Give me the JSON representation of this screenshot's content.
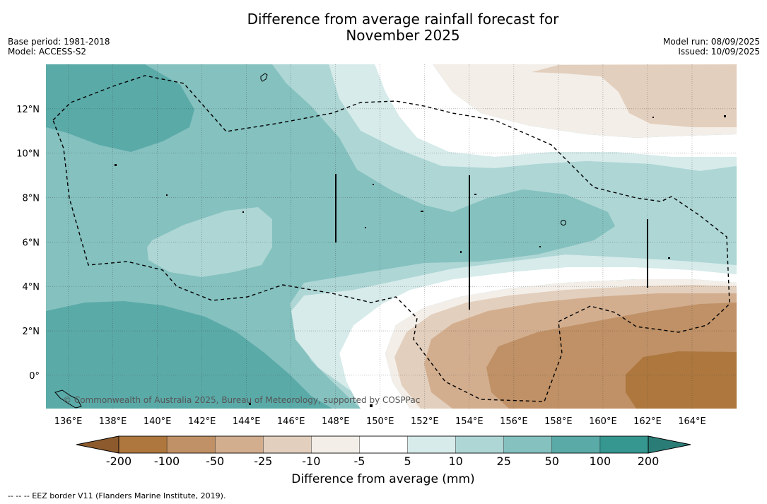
{
  "header": {
    "title_line1": "Difference from average rainfall forecast for",
    "title_line2": "November 2025",
    "base_period": "Base period: 1981-2018",
    "model": "Model: ACCESS-S2",
    "model_run": "Model run: 08/09/2025",
    "issued": "Issued: 10/09/2025"
  },
  "map": {
    "lat_labels": [
      "12°N",
      "10°N",
      "8°N",
      "6°N",
      "4°N",
      "2°N",
      "0°"
    ],
    "lon_labels": [
      "136°E",
      "138°E",
      "140°E",
      "142°E",
      "144°E",
      "146°E",
      "148°E",
      "150°E",
      "152°E",
      "154°E",
      "156°E",
      "158°E",
      "160°E",
      "162°E",
      "164°E"
    ],
    "copyright": "© Commonwealth of Australia 2025, Bureau of Meteorology, supported by COSPPac",
    "colors": {
      "wet_200": "#35978f",
      "wet_100": "#5aaaa8",
      "wet_50": "#84c1bf",
      "wet_25": "#add6d5",
      "wet_10": "#d6ebea",
      "neutral": "#ffffff",
      "dry_10": "#f3eee8",
      "dry_25": "#e3cfbd",
      "dry_50": "#d2ae8f",
      "dry_100": "#c09166",
      "dry_200": "#ad773e"
    }
  },
  "colorbar": {
    "labels": [
      "-200",
      "-100",
      "-50",
      "-25",
      "-10",
      "-5",
      "5",
      "10",
      "25",
      "50",
      "100",
      "200"
    ],
    "colors": [
      "#ad773e",
      "#c09166",
      "#d2ae8f",
      "#e3cfbd",
      "#f3eee8",
      "#ffffff",
      "#d6ebea",
      "#add6d5",
      "#84c1bf",
      "#5aaaa8",
      "#35978f"
    ],
    "low_color": "#8c5a2c",
    "high_color": "#2a7d76",
    "title": "Difference from average (mm)"
  },
  "footnote": "--  --  -- EEZ border V11 (Flanders Marine Institute, 2019)."
}
